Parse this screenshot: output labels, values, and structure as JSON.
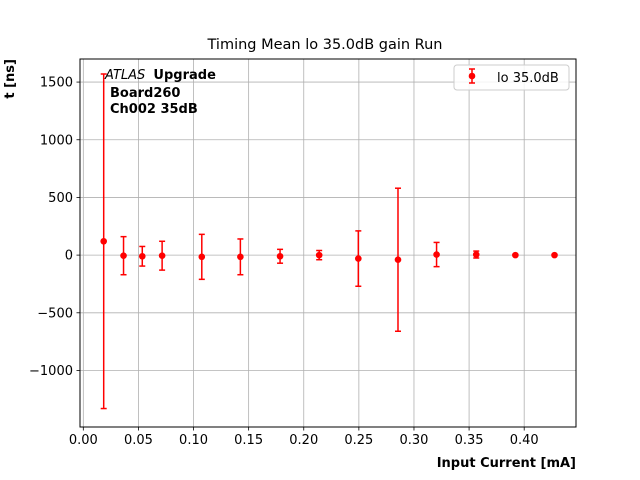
{
  "chart_data": {
    "type": "scatter",
    "title": "Timing Mean lo 35.0dB gain Run",
    "xlabel": "Input Current [mA]",
    "ylabel": "t [ns]",
    "xlim": [
      -0.003,
      0.447
    ],
    "ylim": [
      -1490,
      1700
    ],
    "xticks": [
      "0.00",
      "0.05",
      "0.10",
      "0.15",
      "0.20",
      "0.25",
      "0.30",
      "0.35",
      "0.40"
    ],
    "xtick_values": [
      0.0,
      0.05,
      0.1,
      0.15,
      0.2,
      0.25,
      0.3,
      0.35,
      0.4
    ],
    "yticks": [
      "−1000",
      "−500",
      "0",
      "500",
      "1000",
      "1500"
    ],
    "ytick_values": [
      -1000,
      -500,
      0,
      500,
      1000,
      1500
    ],
    "grid": true,
    "legend_position": "top-right",
    "color": "#ff0000",
    "annotation": {
      "italic": "ATLAS",
      "bold": "Upgrade",
      "line2": "Board260",
      "line3": "Ch002 35dB"
    },
    "series": [
      {
        "name": "lo 35.0dB",
        "points": [
          {
            "x": 0.0185,
            "y": 120,
            "err": 1450
          },
          {
            "x": 0.0365,
            "y": -5,
            "err": 165
          },
          {
            "x": 0.0535,
            "y": -10,
            "err": 85
          },
          {
            "x": 0.0715,
            "y": -5,
            "err": 125
          },
          {
            "x": 0.1075,
            "y": -15,
            "err": 195
          },
          {
            "x": 0.1425,
            "y": -15,
            "err": 155
          },
          {
            "x": 0.1785,
            "y": -10,
            "err": 60
          },
          {
            "x": 0.214,
            "y": 0,
            "err": 40
          },
          {
            "x": 0.2495,
            "y": -30,
            "err": 240
          },
          {
            "x": 0.2855,
            "y": -40,
            "err": 620
          },
          {
            "x": 0.3205,
            "y": 5,
            "err": 105
          },
          {
            "x": 0.3565,
            "y": 5,
            "err": 30
          },
          {
            "x": 0.392,
            "y": 0,
            "err": 5
          },
          {
            "x": 0.4275,
            "y": 0,
            "err": 5
          }
        ]
      }
    ]
  }
}
